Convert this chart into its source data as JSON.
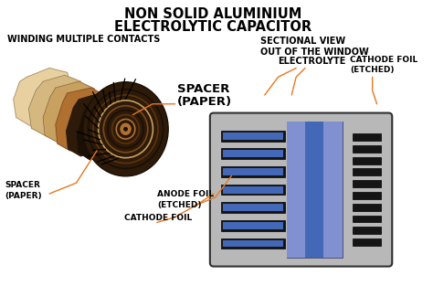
{
  "title_line1": "NON SOLID ALUMINIUM",
  "title_line2": "ELECTROLYTIC CAPACITOR",
  "subtitle": "WINDING MULTIPLE CONTACTS",
  "bg_color": "#ffffff",
  "title_color": "#000000",
  "annotation_color": "#e87820",
  "foil_dark": "#1a0f05",
  "foil_dark2": "#2d1a08",
  "foil_brown": "#5c3310",
  "foil_brown2": "#7a4a20",
  "foil_tan": "#b07030",
  "foil_tan2": "#c8a060",
  "foil_cream": "#d4b880",
  "foil_cream2": "#e8d0a0",
  "section_gray": "#b8b8b8",
  "section_blue_light": "#8090d0",
  "section_blue": "#4468b8",
  "section_blue_dark": "#2040a0",
  "section_black": "#101010"
}
